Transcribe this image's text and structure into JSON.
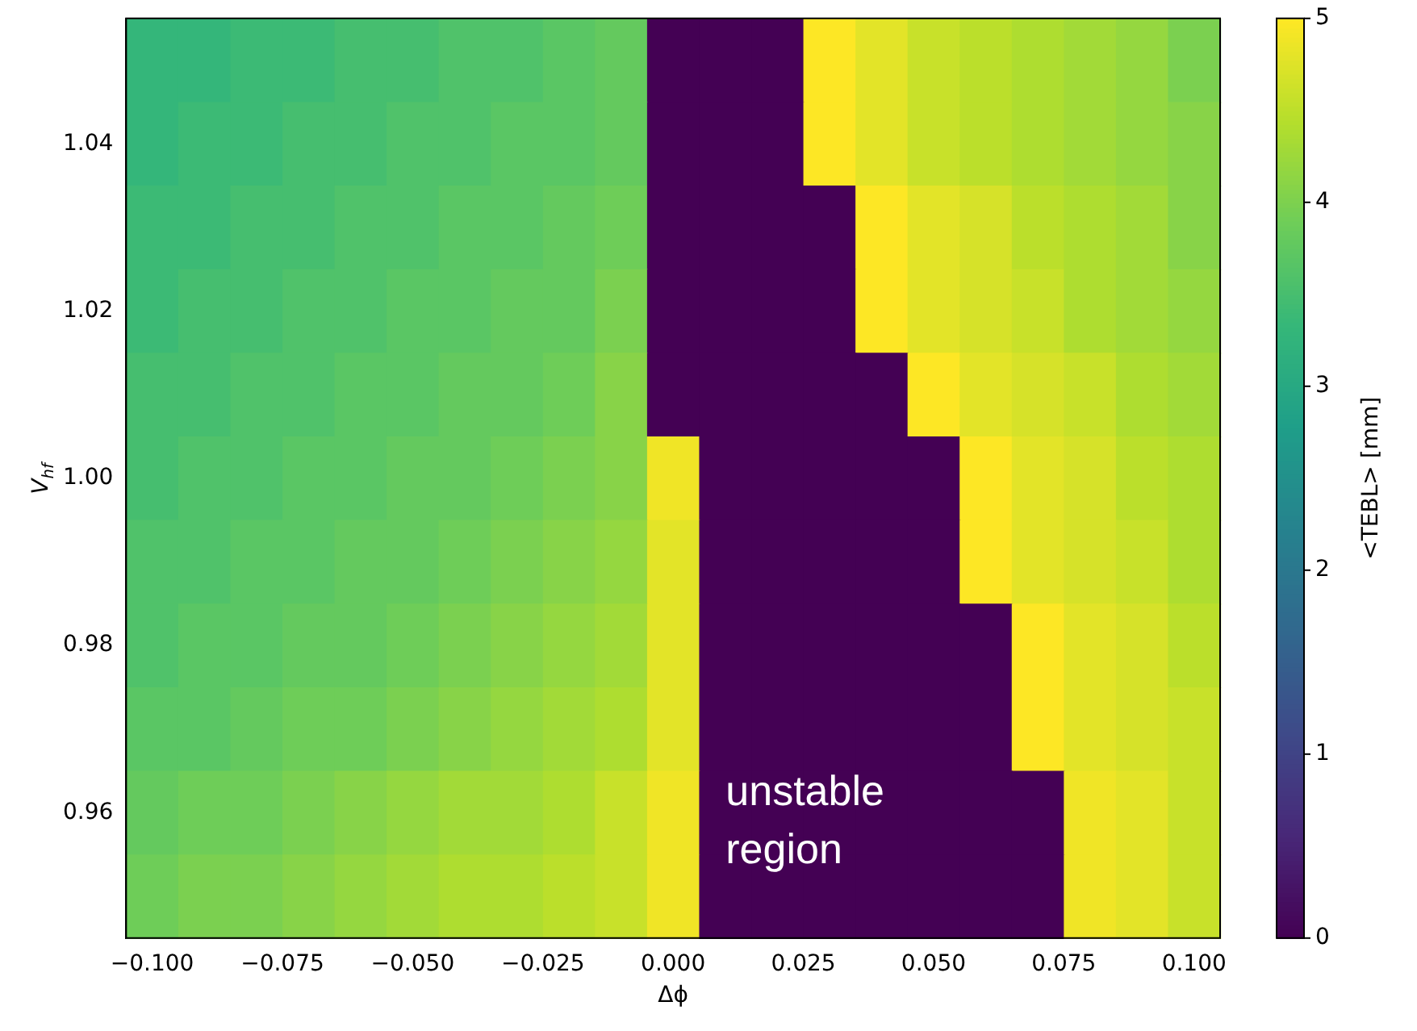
{
  "chart_data": {
    "type": "heatmap",
    "xlabel": "Δϕ",
    "ylabel": "V$_{hf}$",
    "clabel": "<TEBL> [mm]",
    "x": [
      -0.1,
      -0.09,
      -0.08,
      -0.07,
      -0.06,
      -0.05,
      -0.04,
      -0.03,
      -0.02,
      -0.01,
      0,
      0.01,
      0.02,
      0.03,
      0.04,
      0.05,
      0.06,
      0.07,
      0.08,
      0.09,
      0.1
    ],
    "y": [
      1.05,
      1.04,
      1.03,
      1.02,
      1.01,
      1.0,
      0.99,
      0.98,
      0.97,
      0.96,
      0.95
    ],
    "xlim": [
      -0.105,
      0.105
    ],
    "xticks": [
      {
        "value": -0.1,
        "label": "−0.100"
      },
      {
        "value": -0.075,
        "label": "−0.075"
      },
      {
        "value": -0.05,
        "label": "−0.050"
      },
      {
        "value": -0.025,
        "label": "−0.025"
      },
      {
        "value": 0,
        "label": "0.000"
      },
      {
        "value": 0.025,
        "label": "0.025"
      },
      {
        "value": 0.05,
        "label": "0.050"
      },
      {
        "value": 0.075,
        "label": "0.075"
      },
      {
        "value": 0.1,
        "label": "0.100"
      }
    ],
    "ylim": [
      0.945,
      1.055
    ],
    "yticks": [
      0.96,
      0.98,
      {
        "value": 1.0,
        "label": "1.00"
      },
      1.02,
      1.04
    ],
    "clim": [
      0,
      5
    ],
    "cticks": [
      0,
      1,
      2,
      3,
      4,
      5
    ],
    "cells": [
      [
        3.3,
        3.3,
        3.4,
        3.4,
        3.5,
        3.5,
        3.6,
        3.6,
        3.7,
        3.8,
        0,
        0,
        0,
        5.0,
        4.8,
        4.6,
        4.5,
        4.4,
        4.3,
        4.2,
        4.0
      ],
      [
        3.3,
        3.4,
        3.4,
        3.5,
        3.5,
        3.6,
        3.6,
        3.7,
        3.7,
        3.8,
        0,
        0,
        0,
        5.0,
        4.8,
        4.6,
        4.5,
        4.4,
        4.3,
        4.2,
        4.1
      ],
      [
        3.4,
        3.4,
        3.5,
        3.5,
        3.6,
        3.6,
        3.7,
        3.7,
        3.8,
        3.9,
        0,
        0,
        0,
        0,
        5.0,
        4.8,
        4.7,
        4.5,
        4.4,
        4.3,
        4.1
      ],
      [
        3.4,
        3.5,
        3.5,
        3.6,
        3.6,
        3.7,
        3.7,
        3.8,
        3.8,
        4.0,
        0,
        0,
        0,
        0,
        5.0,
        4.8,
        4.7,
        4.6,
        4.4,
        4.3,
        4.2
      ],
      [
        3.5,
        3.5,
        3.6,
        3.6,
        3.7,
        3.7,
        3.8,
        3.8,
        3.9,
        4.1,
        0,
        0,
        0,
        0,
        0,
        5.0,
        4.8,
        4.7,
        4.6,
        4.4,
        4.3
      ],
      [
        3.5,
        3.6,
        3.6,
        3.7,
        3.7,
        3.8,
        3.8,
        3.9,
        4.0,
        4.1,
        4.9,
        0,
        0,
        0,
        0,
        0,
        5.0,
        4.8,
        4.7,
        4.5,
        4.4
      ],
      [
        3.6,
        3.6,
        3.7,
        3.7,
        3.8,
        3.8,
        3.9,
        4.0,
        4.1,
        4.2,
        4.8,
        0,
        0,
        0,
        0,
        0,
        5.0,
        4.8,
        4.7,
        4.6,
        4.4
      ],
      [
        3.6,
        3.7,
        3.7,
        3.8,
        3.8,
        3.9,
        4.0,
        4.1,
        4.2,
        4.3,
        4.8,
        0,
        0,
        0,
        0,
        0,
        0,
        5.0,
        4.8,
        4.7,
        4.5
      ],
      [
        3.7,
        3.7,
        3.8,
        3.9,
        3.9,
        4.0,
        4.1,
        4.2,
        4.3,
        4.4,
        4.8,
        0,
        0,
        0,
        0,
        0,
        0,
        5.0,
        4.8,
        4.7,
        4.6
      ],
      [
        3.8,
        3.9,
        3.9,
        4.0,
        4.1,
        4.2,
        4.3,
        4.3,
        4.4,
        4.6,
        4.9,
        0,
        0,
        0,
        0,
        0,
        0,
        0,
        4.9,
        4.8,
        4.6
      ],
      [
        3.9,
        4.0,
        4.0,
        4.1,
        4.2,
        4.3,
        4.4,
        4.4,
        4.5,
        4.6,
        4.9,
        0,
        0,
        0,
        0,
        0,
        0,
        0,
        4.9,
        4.8,
        4.6
      ]
    ],
    "annotations": [
      "unstable region"
    ]
  }
}
